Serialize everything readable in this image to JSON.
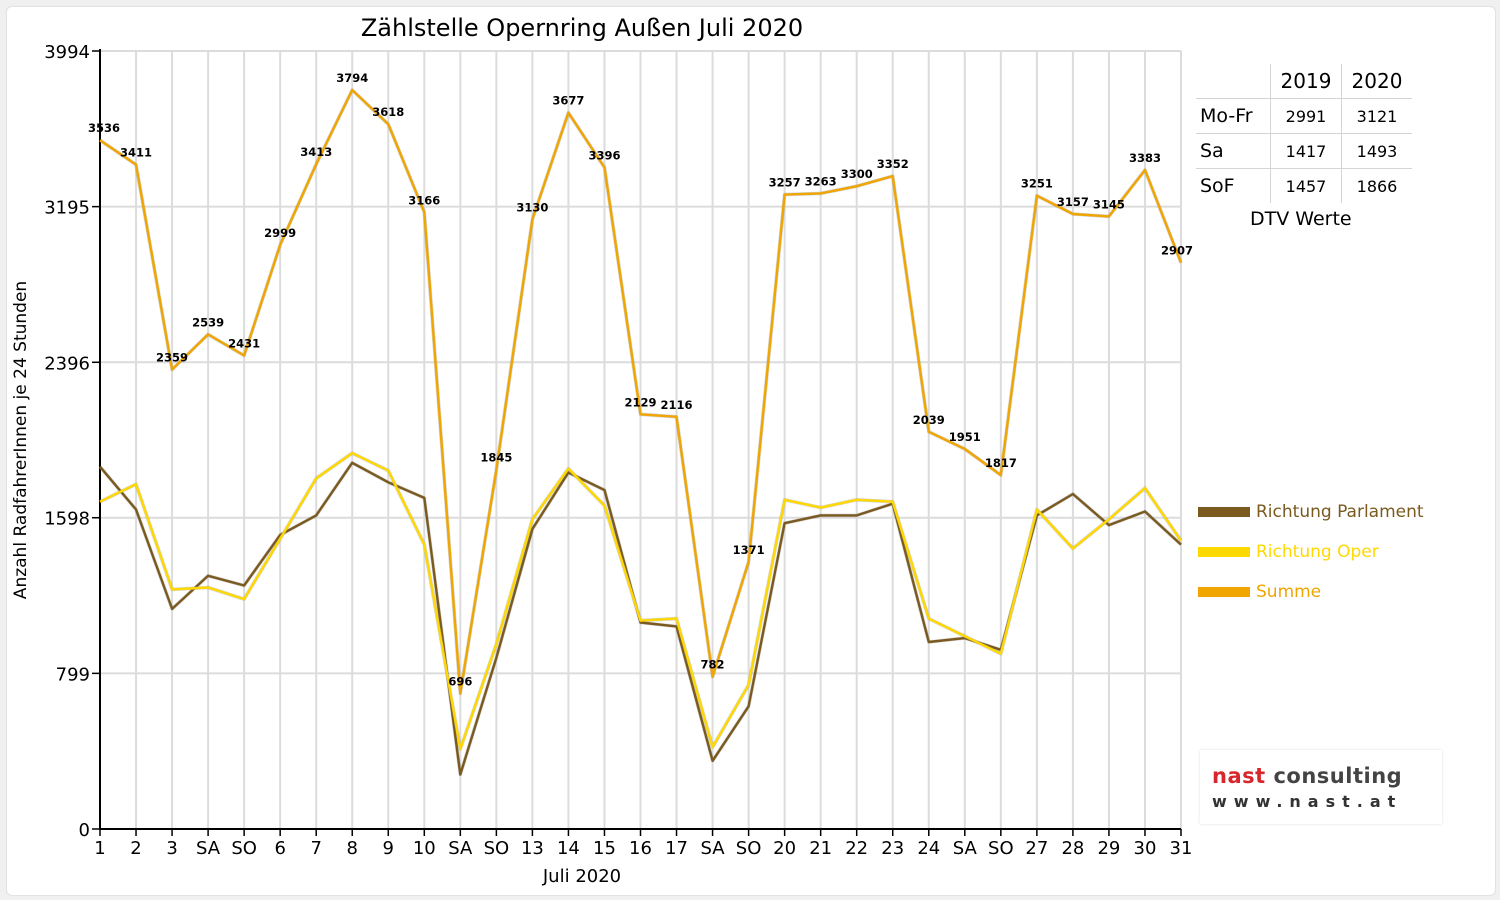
{
  "chart_data": {
    "type": "line",
    "title": "Zählstelle Opernring Außen Juli 2020",
    "xlabel": "Juli 2020",
    "ylabel": "Anzahl RadfahrerInnen je 24 Stunden",
    "ylim": [
      0,
      3994
    ],
    "yticks": [
      0,
      799,
      1598,
      2396,
      3195,
      3994
    ],
    "grid": true,
    "legend_position": "right",
    "categories": [
      "1",
      "2",
      "3",
      "SA",
      "SO",
      "6",
      "7",
      "8",
      "9",
      "10",
      "SA",
      "SO",
      "13",
      "14",
      "15",
      "16",
      "17",
      "SA",
      "SO",
      "20",
      "21",
      "22",
      "23",
      "24",
      "SA",
      "SO",
      "27",
      "28",
      "29",
      "30",
      "31"
    ],
    "weekend_label_color": "#ff0000",
    "series": [
      {
        "name": "Richtung Parlament",
        "color": "#7a5a1e",
        "values": [
          1860,
          1640,
          1130,
          1300,
          1250,
          1510,
          1610,
          1880,
          1780,
          1700,
          280,
          880,
          1540,
          1830,
          1740,
          1060,
          1040,
          350,
          630,
          1570,
          1610,
          1610,
          1670,
          960,
          980,
          920,
          1610,
          1720,
          1560,
          1630,
          1460
        ]
      },
      {
        "name": "Richtung Oper",
        "color": "#ffd800",
        "values": [
          1680,
          1770,
          1230,
          1240,
          1180,
          1490,
          1800,
          1930,
          1840,
          1460,
          410,
          950,
          1590,
          1850,
          1660,
          1070,
          1080,
          420,
          740,
          1690,
          1650,
          1690,
          1680,
          1080,
          990,
          900,
          1640,
          1440,
          1590,
          1750,
          1480
        ]
      },
      {
        "name": "Summe",
        "color": "#f0a500",
        "values": [
          3536,
          3411,
          2359,
          2539,
          2431,
          2999,
          3413,
          3794,
          3618,
          3166,
          696,
          1845,
          3130,
          3677,
          3396,
          2129,
          2116,
          782,
          1371,
          3257,
          3263,
          3300,
          3352,
          2039,
          1951,
          1817,
          3251,
          3157,
          3145,
          3383,
          2907
        ],
        "labels": [
          "3536",
          "3411",
          "2359",
          "2539",
          "2431",
          "2999",
          "3413",
          "3794",
          "3618",
          "3166",
          "696",
          "1845",
          "3130",
          "3677",
          "3396",
          "2129",
          "2116",
          "782",
          "1371",
          "3257",
          "3263",
          "3300",
          "3352",
          "2039",
          "1951",
          "1817",
          "3251",
          "3157",
          "3145",
          "3383",
          "2907"
        ]
      }
    ]
  },
  "dtv_table": {
    "caption": "DTV Werte",
    "headers": [
      "2019",
      "2020"
    ],
    "rows": [
      {
        "label": "Mo-Fr",
        "v2019": "2991",
        "v2020": "3121"
      },
      {
        "label": "Sa",
        "v2019": "1417",
        "v2020": "1493"
      },
      {
        "label": "SoF",
        "v2019": "1457",
        "v2020": "1866"
      }
    ]
  },
  "logo": {
    "name_part1": "nast",
    "name_part2": "consulting",
    "url": "www.nast.at"
  }
}
